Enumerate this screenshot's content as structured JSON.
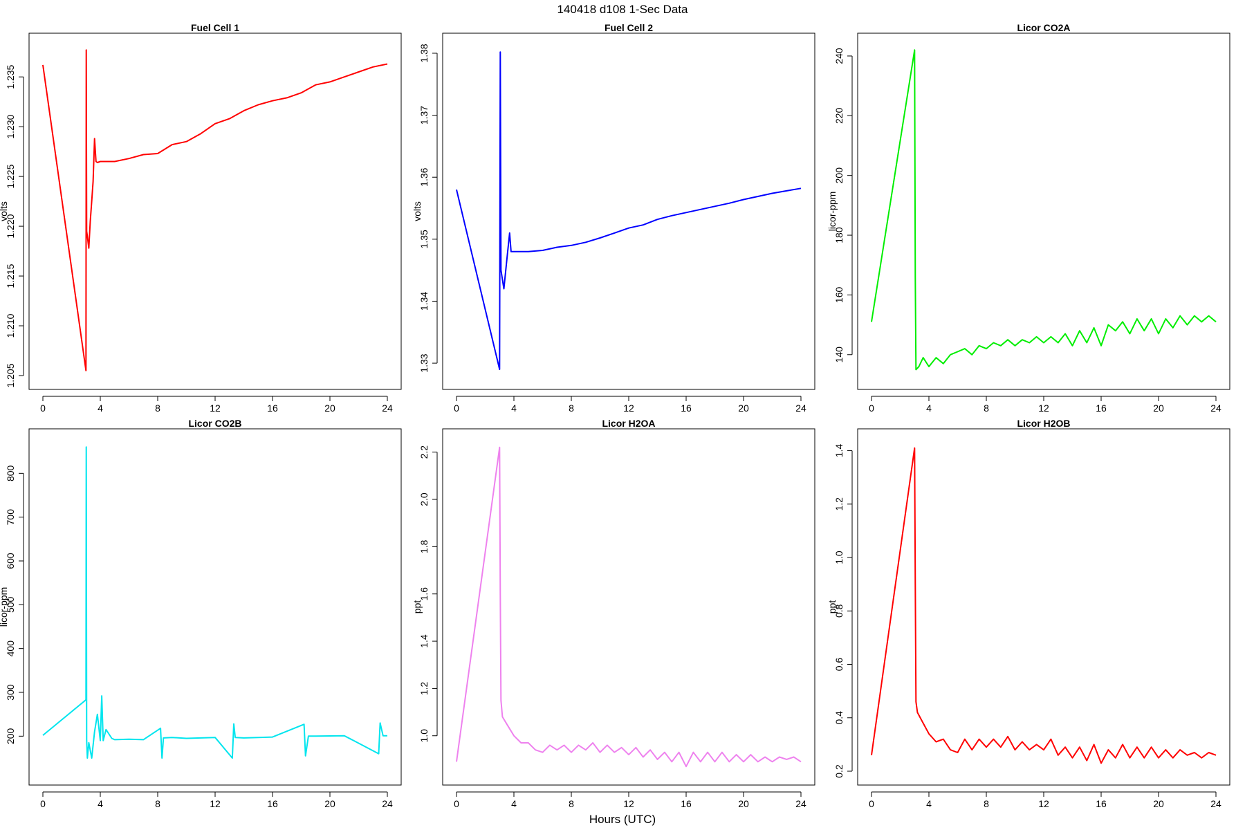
{
  "figure": {
    "title": "140418   d108   1-Sec Data",
    "xlabel": "Hours (UTC)"
  },
  "chart_data": [
    {
      "type": "line",
      "title": "Fuel Cell 1",
      "ylabel": "volts",
      "color": "#ff0000",
      "xlim": [
        0,
        24
      ],
      "ylim": [
        1.205,
        1.238
      ],
      "xticks": [
        0,
        4,
        8,
        12,
        16,
        20,
        24
      ],
      "yticks": [
        "1.205",
        "1.210",
        "1.215",
        "1.220",
        "1.225",
        "1.230",
        "1.235"
      ],
      "x": [
        0,
        3,
        3.02,
        3.05,
        3.1,
        3.2,
        3.3,
        3.4,
        3.5,
        3.6,
        3.7,
        3.8,
        4,
        5,
        6,
        7,
        8,
        9,
        10,
        11,
        12,
        13,
        14,
        15,
        16,
        17,
        18,
        19,
        20,
        21,
        22,
        23,
        24
      ],
      "y": [
        1.2362,
        1.2055,
        1.2377,
        1.2195,
        1.219,
        1.2178,
        1.2205,
        1.2225,
        1.2245,
        1.2288,
        1.2265,
        1.2264,
        1.2265,
        1.2265,
        1.2268,
        1.2272,
        1.2273,
        1.2282,
        1.2285,
        1.2293,
        1.2303,
        1.2308,
        1.2316,
        1.2322,
        1.2326,
        1.2329,
        1.2334,
        1.2342,
        1.2345,
        1.235,
        1.2355,
        1.236,
        1.2363
      ]
    },
    {
      "type": "line",
      "title": "Fuel Cell 2",
      "ylabel": "volts",
      "color": "#0000ff",
      "xlim": [
        0,
        24
      ],
      "ylim": [
        1.328,
        1.381
      ],
      "xticks": [
        0,
        4,
        8,
        12,
        16,
        20,
        24
      ],
      "yticks": [
        "1.33",
        "1.34",
        "1.35",
        "1.36",
        "1.37",
        "1.38"
      ],
      "x": [
        0,
        3,
        3.05,
        3.1,
        3.2,
        3.3,
        3.5,
        3.7,
        3.8,
        4,
        5,
        6,
        7,
        8,
        9,
        10,
        11,
        12,
        13,
        14,
        15,
        16,
        17,
        18,
        19,
        20,
        21,
        22,
        23,
        24
      ],
      "y": [
        1.358,
        1.329,
        1.3802,
        1.345,
        1.3435,
        1.342,
        1.3465,
        1.351,
        1.348,
        1.348,
        1.348,
        1.3482,
        1.3487,
        1.349,
        1.3495,
        1.3502,
        1.351,
        1.3518,
        1.3523,
        1.3532,
        1.3538,
        1.3543,
        1.3548,
        1.3553,
        1.3558,
        1.3564,
        1.3569,
        1.3574,
        1.3578,
        1.3582
      ]
    },
    {
      "type": "line",
      "title": "Licor CO2A",
      "ylabel": "licor-ppm",
      "color": "#00ee00",
      "xlim": [
        0,
        24
      ],
      "ylim": [
        133,
        243
      ],
      "xticks": [
        0,
        4,
        8,
        12,
        16,
        20,
        24
      ],
      "yticks": [
        "140",
        "160",
        "180",
        "200",
        "220",
        "240"
      ],
      "x": [
        0,
        3,
        3.05,
        3.1,
        3.3,
        3.6,
        4,
        4.5,
        5,
        5.5,
        6,
        6.5,
        7,
        7.5,
        8,
        8.5,
        9,
        9.5,
        10,
        10.5,
        11,
        11.5,
        12,
        12.5,
        13,
        13.5,
        14,
        14.5,
        15,
        15.5,
        16,
        16.5,
        17,
        17.5,
        18,
        18.5,
        19,
        19.5,
        20,
        20.5,
        21,
        21.5,
        22,
        22.5,
        23,
        23.5,
        24
      ],
      "y": [
        151,
        242,
        166,
        135,
        136,
        139,
        136,
        139,
        137,
        140,
        141,
        142,
        140,
        143,
        142,
        144,
        143,
        145,
        143,
        145,
        144,
        146,
        144,
        146,
        144,
        147,
        143,
        148,
        144,
        149,
        143,
        150,
        148,
        151,
        147,
        152,
        148,
        152,
        147,
        152,
        149,
        153,
        150,
        153,
        151,
        153,
        151
      ]
    },
    {
      "type": "line",
      "title": "Licor CO2B",
      "ylabel": "licor-ppm",
      "color": "#00e5ee",
      "xlim": [
        0,
        24
      ],
      "ylim": [
        120,
        870
      ],
      "xticks": [
        0,
        4,
        8,
        12,
        16,
        20,
        24
      ],
      "yticks": [
        "200",
        "300",
        "400",
        "500",
        "600",
        "700",
        "800"
      ],
      "x": [
        0,
        3,
        3.02,
        3.05,
        3.1,
        3.2,
        3.4,
        3.6,
        3.8,
        4,
        4.1,
        4.2,
        4.4,
        4.8,
        5,
        6,
        7,
        8.2,
        8.3,
        8.4,
        9,
        10,
        12,
        13.2,
        13.3,
        13.4,
        14,
        16,
        18.2,
        18.3,
        18.5,
        19,
        21,
        23.4,
        23.5,
        23.7,
        24
      ],
      "y": [
        202,
        283,
        860,
        190,
        150,
        185,
        150,
        210,
        250,
        190,
        292,
        190,
        215,
        195,
        192,
        193,
        192,
        218,
        150,
        196,
        197,
        195,
        197,
        150,
        228,
        197,
        196,
        198,
        227,
        155,
        200,
        200,
        201,
        160,
        230,
        201,
        201
      ]
    },
    {
      "type": "line",
      "title": "Licor H2OA",
      "ylabel": "ppt",
      "color": "#ee82ee",
      "xlim": [
        0,
        24
      ],
      "ylim": [
        0.85,
        2.24
      ],
      "xticks": [
        0,
        4,
        8,
        12,
        16,
        20,
        24
      ],
      "yticks": [
        "1.0",
        "1.2",
        "1.4",
        "1.6",
        "1.8",
        "2.0",
        "2.2"
      ],
      "x": [
        0,
        3,
        3.05,
        3.1,
        3.2,
        3.5,
        4,
        4.5,
        5,
        5.5,
        6,
        6.5,
        7,
        7.5,
        8,
        8.5,
        9,
        9.5,
        10,
        10.5,
        11,
        11.5,
        12,
        12.5,
        13,
        13.5,
        14,
        14.5,
        15,
        15.5,
        16,
        16.5,
        17,
        17.5,
        18,
        18.5,
        19,
        19.5,
        20,
        20.5,
        21,
        21.5,
        22,
        22.5,
        23,
        23.5,
        24
      ],
      "y": [
        0.89,
        2.22,
        1.6,
        1.15,
        1.08,
        1.05,
        1.0,
        0.97,
        0.97,
        0.94,
        0.93,
        0.96,
        0.94,
        0.96,
        0.93,
        0.96,
        0.94,
        0.97,
        0.93,
        0.96,
        0.93,
        0.95,
        0.92,
        0.95,
        0.91,
        0.94,
        0.9,
        0.93,
        0.89,
        0.93,
        0.87,
        0.93,
        0.89,
        0.93,
        0.89,
        0.93,
        0.89,
        0.92,
        0.89,
        0.92,
        0.89,
        0.91,
        0.89,
        0.91,
        0.9,
        0.91,
        0.89
      ]
    },
    {
      "type": "line",
      "title": "Licor H2OB",
      "ylabel": "ppt",
      "color": "#ff0000",
      "xlim": [
        0,
        24
      ],
      "ylim": [
        0.2,
        1.43
      ],
      "xticks": [
        0,
        4,
        8,
        12,
        16,
        20,
        24
      ],
      "yticks": [
        "0.2",
        "0.4",
        "0.6",
        "0.8",
        "1.0",
        "1.2",
        "1.4"
      ],
      "x": [
        0,
        3,
        3.05,
        3.1,
        3.2,
        3.5,
        4,
        4.5,
        5,
        5.5,
        6,
        6.5,
        7,
        7.5,
        8,
        8.5,
        9,
        9.5,
        10,
        10.5,
        11,
        11.5,
        12,
        12.5,
        13,
        13.5,
        14,
        14.5,
        15,
        15.5,
        16,
        16.5,
        17,
        17.5,
        18,
        18.5,
        19,
        19.5,
        20,
        20.5,
        21,
        21.5,
        22,
        22.5,
        23,
        23.5,
        24
      ],
      "y": [
        0.26,
        1.41,
        0.9,
        0.46,
        0.42,
        0.39,
        0.34,
        0.31,
        0.32,
        0.28,
        0.27,
        0.32,
        0.28,
        0.32,
        0.29,
        0.32,
        0.29,
        0.33,
        0.28,
        0.31,
        0.28,
        0.3,
        0.28,
        0.32,
        0.26,
        0.29,
        0.25,
        0.29,
        0.24,
        0.3,
        0.23,
        0.28,
        0.25,
        0.3,
        0.25,
        0.29,
        0.25,
        0.29,
        0.25,
        0.28,
        0.25,
        0.28,
        0.26,
        0.27,
        0.25,
        0.27,
        0.26
      ]
    }
  ]
}
